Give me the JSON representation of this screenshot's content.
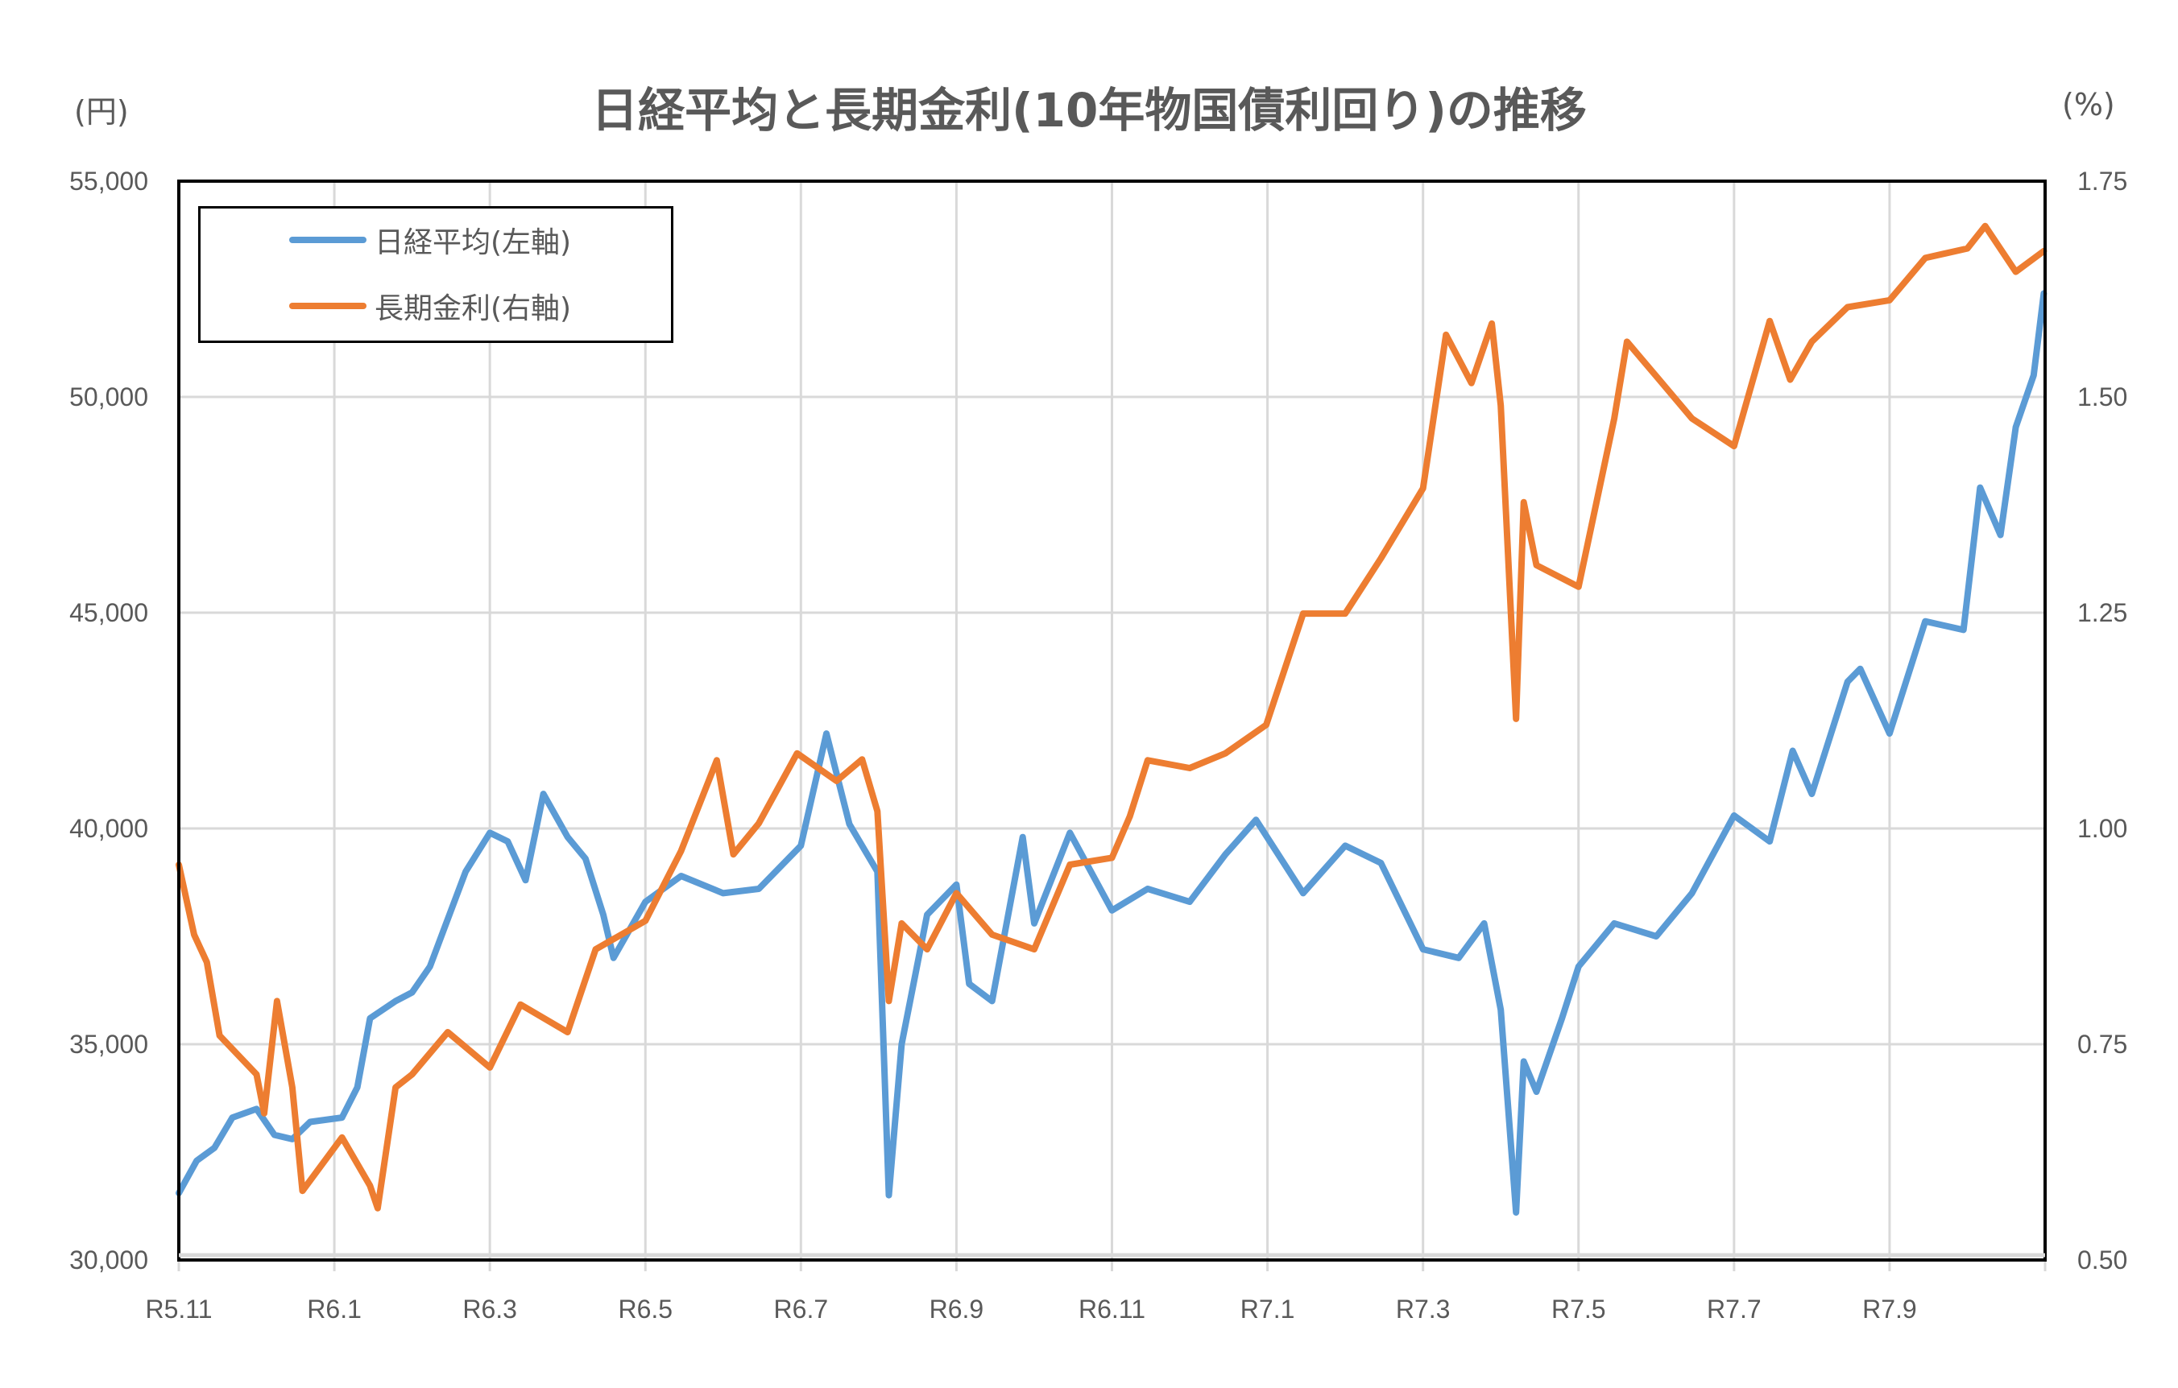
{
  "chart_data": {
    "type": "line",
    "title": "日経平均と長期金利(10年物国債利回り)の推移",
    "y_left_unit": "(円)",
    "y_right_unit": "(%)",
    "y_left_range": [
      30000,
      55000
    ],
    "y_left_ticks": [
      "30,000",
      "35,000",
      "40,000",
      "45,000",
      "50,000",
      "55,000"
    ],
    "y_right_range": [
      0.5,
      1.75
    ],
    "y_right_ticks": [
      "0.50",
      "0.75",
      "1.00",
      "1.25",
      "1.50",
      "1.75"
    ],
    "x_range": [
      "R5.11",
      "R7.11"
    ],
    "x_ticks": [
      "R5.11",
      "R6.1",
      "R6.3",
      "R6.5",
      "R6.7",
      "R6.9",
      "R6.11",
      "R7.1",
      "R7.3",
      "R7.5",
      "R7.7",
      "R7.9"
    ],
    "grid": true,
    "legend_position": "top-left",
    "series": [
      {
        "name": "日経平均(左軸)",
        "axis": "left",
        "color": "#5B9BD5",
        "points": [
          [
            "R5.11.1",
            31550
          ],
          [
            "R5.11.8",
            32300
          ],
          [
            "R5.11.15",
            32600
          ],
          [
            "R5.11.22",
            33300
          ],
          [
            "R5.12.1",
            33500
          ],
          [
            "R5.12.8",
            32900
          ],
          [
            "R5.12.15",
            32800
          ],
          [
            "R5.12.22",
            33200
          ],
          [
            "R6.1.4",
            33300
          ],
          [
            "R6.1.10",
            34000
          ],
          [
            "R6.1.15",
            35600
          ],
          [
            "R6.1.25",
            36000
          ],
          [
            "R6.2.1",
            36200
          ],
          [
            "R6.2.8",
            36800
          ],
          [
            "R6.2.15",
            37900
          ],
          [
            "R6.2.22",
            39000
          ],
          [
            "R6.3.1",
            39900
          ],
          [
            "R6.3.8",
            39700
          ],
          [
            "R6.3.15",
            38800
          ],
          [
            "R6.3.22",
            40800
          ],
          [
            "R6.4.1",
            39800
          ],
          [
            "R6.4.8",
            39300
          ],
          [
            "R6.4.15",
            38000
          ],
          [
            "R6.4.19",
            37000
          ],
          [
            "R6.5.1",
            38300
          ],
          [
            "R6.5.15",
            38900
          ],
          [
            "R6.6.1",
            38500
          ],
          [
            "R6.6.15",
            38600
          ],
          [
            "R6.7.1",
            39600
          ],
          [
            "R6.7.11",
            42200
          ],
          [
            "R6.7.20",
            40100
          ],
          [
            "R6.7.31",
            39000
          ],
          [
            "R6.8.5",
            31500
          ],
          [
            "R6.8.10",
            35000
          ],
          [
            "R6.8.20",
            38000
          ],
          [
            "R6.9.1",
            38700
          ],
          [
            "R6.9.6",
            36400
          ],
          [
            "R6.9.15",
            36000
          ],
          [
            "R6.9.27",
            39800
          ],
          [
            "R6.10.1",
            37800
          ],
          [
            "R6.10.15",
            39900
          ],
          [
            "R6.11.1",
            38100
          ],
          [
            "R6.11.15",
            38600
          ],
          [
            "R6.12.1",
            38300
          ],
          [
            "R6.12.15",
            39400
          ],
          [
            "R6.12.27",
            40200
          ],
          [
            "R7.1.15",
            38500
          ],
          [
            "R7.2.1",
            39600
          ],
          [
            "R7.2.15",
            39200
          ],
          [
            "R7.3.1",
            37200
          ],
          [
            "R7.3.15",
            37000
          ],
          [
            "R7.3.25",
            37800
          ],
          [
            "R7.4.1",
            35800
          ],
          [
            "R7.4.7",
            31100
          ],
          [
            "R7.4.10",
            34600
          ],
          [
            "R7.4.15",
            33900
          ],
          [
            "R7.4.25",
            35600
          ],
          [
            "R7.5.1",
            36800
          ],
          [
            "R7.5.15",
            37800
          ],
          [
            "R7.6.1",
            37500
          ],
          [
            "R7.6.15",
            38500
          ],
          [
            "R7.7.1",
            40300
          ],
          [
            "R7.7.15",
            39700
          ],
          [
            "R7.7.24",
            41800
          ],
          [
            "R7.8.1",
            40800
          ],
          [
            "R7.8.15",
            43400
          ],
          [
            "R7.8.20",
            43700
          ],
          [
            "R7.9.1",
            42200
          ],
          [
            "R7.9.15",
            44800
          ],
          [
            "R7.9.30",
            44600
          ],
          [
            "R7.10.6",
            47900
          ],
          [
            "R7.10.14",
            46800
          ],
          [
            "R7.10.20",
            49300
          ],
          [
            "R7.10.27",
            50500
          ],
          [
            "R7.10.31",
            52400
          ]
        ]
      },
      {
        "name": "長期金利(右軸)",
        "axis": "right",
        "color": "#ED7D31",
        "points": [
          [
            "R5.11.1",
            0.958
          ],
          [
            "R5.11.7",
            0.877
          ],
          [
            "R5.11.12",
            0.845
          ],
          [
            "R5.11.17",
            0.76
          ],
          [
            "R5.12.1",
            0.715
          ],
          [
            "R5.12.4",
            0.67
          ],
          [
            "R5.12.9",
            0.8
          ],
          [
            "R5.12.15",
            0.7
          ],
          [
            "R5.12.19",
            0.58
          ],
          [
            "R6.1.4",
            0.642
          ],
          [
            "R6.1.15",
            0.586
          ],
          [
            "R6.1.18",
            0.56
          ],
          [
            "R6.1.25",
            0.7
          ],
          [
            "R6.2.1",
            0.715
          ],
          [
            "R6.2.15",
            0.764
          ],
          [
            "R6.3.1",
            0.723
          ],
          [
            "R6.3.13",
            0.796
          ],
          [
            "R6.4.1",
            0.764
          ],
          [
            "R6.4.12",
            0.86
          ],
          [
            "R6.5.1",
            0.893
          ],
          [
            "R6.5.15",
            0.974
          ],
          [
            "R6.5.29",
            1.079
          ],
          [
            "R6.6.5",
            0.97
          ],
          [
            "R6.6.15",
            1.006
          ],
          [
            "R6.6.30",
            1.087
          ],
          [
            "R6.7.15",
            1.055
          ],
          [
            "R6.7.25",
            1.08
          ],
          [
            "R6.7.31",
            1.02
          ],
          [
            "R6.8.5",
            0.8
          ],
          [
            "R6.8.10",
            0.89
          ],
          [
            "R6.8.20",
            0.86
          ],
          [
            "R6.9.1",
            0.925
          ],
          [
            "R6.9.15",
            0.877
          ],
          [
            "R6.10.1",
            0.86
          ],
          [
            "R6.10.15",
            0.958
          ],
          [
            "R6.11.1",
            0.966
          ],
          [
            "R6.11.8",
            1.014
          ],
          [
            "R6.11.15",
            1.079
          ],
          [
            "R6.12.1",
            1.07
          ],
          [
            "R6.12.15",
            1.087
          ],
          [
            "R6.12.31",
            1.12
          ],
          [
            "R7.1.15",
            1.249
          ],
          [
            "R7.2.1",
            1.249
          ],
          [
            "R7.2.15",
            1.313
          ],
          [
            "R7.3.1",
            1.394
          ],
          [
            "R7.3.10",
            1.572
          ],
          [
            "R7.3.20",
            1.516
          ],
          [
            "R7.3.28",
            1.585
          ],
          [
            "R7.4.1",
            1.49
          ],
          [
            "R7.4.7",
            1.127
          ],
          [
            "R7.4.10",
            1.378
          ],
          [
            "R7.4.15",
            1.305
          ],
          [
            "R7.5.1",
            1.28
          ],
          [
            "R7.5.15",
            1.475
          ],
          [
            "R7.5.20",
            1.564
          ],
          [
            "R7.6.1",
            1.524
          ],
          [
            "R7.6.15",
            1.475
          ],
          [
            "R7.7.1",
            1.443
          ],
          [
            "R7.7.15",
            1.588
          ],
          [
            "R7.7.23",
            1.52
          ],
          [
            "R7.8.1",
            1.564
          ],
          [
            "R7.8.15",
            1.604
          ],
          [
            "R7.9.1",
            1.612
          ],
          [
            "R7.9.15",
            1.661
          ],
          [
            "R7.10.1",
            1.672
          ],
          [
            "R7.10.8",
            1.698
          ],
          [
            "R7.10.20",
            1.645
          ],
          [
            "R7.10.31",
            1.669
          ]
        ]
      }
    ]
  }
}
